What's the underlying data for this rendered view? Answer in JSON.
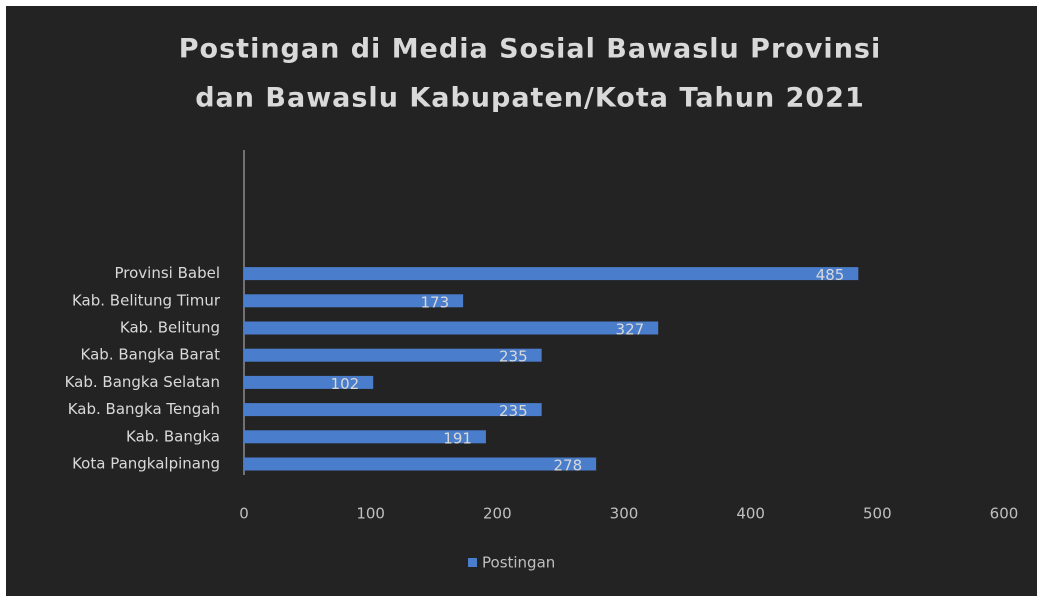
{
  "chart_data": {
    "type": "bar",
    "orientation": "horizontal",
    "title": [
      "Postingan di Media Sosial Bawaslu Provinsi",
      "dan Bawaslu Kabupaten/Kota Tahun 2021"
    ],
    "categories": [
      "Provinsi Babel",
      "Kab. Belitung Timur",
      "Kab. Belitung",
      "Kab. Bangka Barat",
      "Kab. Bangka Selatan",
      "Kab. Bangka Tengah",
      "Kab. Bangka",
      "Kota Pangkalpinang"
    ],
    "series": [
      {
        "name": "Postingan",
        "color": "#4a7dcc",
        "values": [
          485,
          173,
          327,
          235,
          102,
          235,
          191,
          278
        ]
      }
    ],
    "xlim": [
      0,
      600
    ],
    "xticks": [
      0,
      100,
      200,
      300,
      400,
      500,
      600
    ],
    "grid": false,
    "legend": "bottom"
  }
}
